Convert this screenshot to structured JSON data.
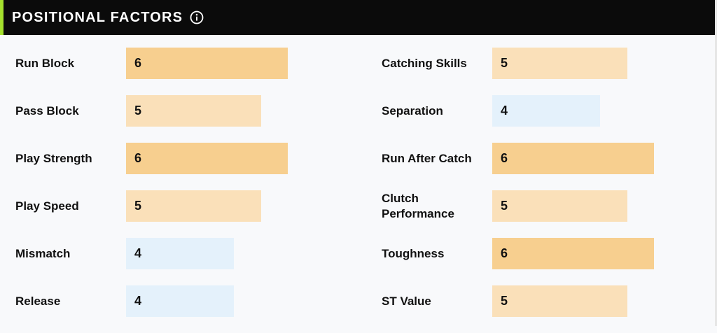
{
  "header": {
    "title": "POSITIONAL FACTORS",
    "info_icon": "info-circle-icon"
  },
  "colors": {
    "score_6": "#f7cf8f",
    "score_5": "#fae0b9",
    "score_4": "#e4f1fb",
    "accent": "#a6e22e",
    "header_bg": "#0b0b0b"
  },
  "left_factors": [
    {
      "label": "Run Block",
      "value": 6
    },
    {
      "label": "Pass Block",
      "value": 5
    },
    {
      "label": "Play Strength",
      "value": 6
    },
    {
      "label": "Play Speed",
      "value": 5
    },
    {
      "label": "Mismatch",
      "value": 4
    },
    {
      "label": "Release",
      "value": 4
    }
  ],
  "right_factors": [
    {
      "label": "Catching Skills",
      "value": 5
    },
    {
      "label": "Separation",
      "value": 4
    },
    {
      "label": "Run After Catch",
      "value": 6
    },
    {
      "label": "Clutch Performance",
      "value": 5
    },
    {
      "label": "Toughness",
      "value": 6
    },
    {
      "label": "ST Value",
      "value": 5
    }
  ]
}
